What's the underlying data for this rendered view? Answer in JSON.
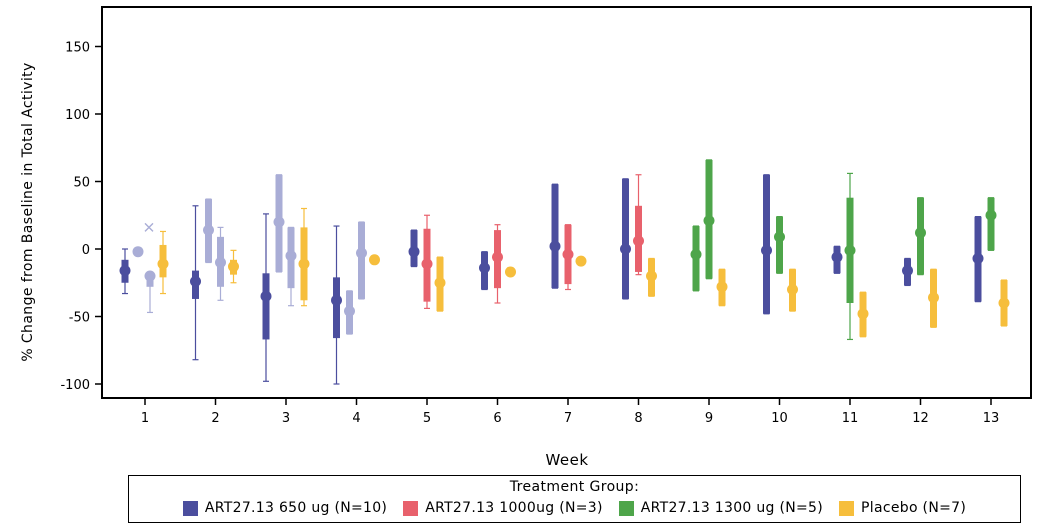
{
  "chart_data": {
    "type": "box",
    "title": "",
    "xlabel": "Week",
    "ylabel": "%  Change from Baseline in Total Activity",
    "ylim": [
      -108,
      175
    ],
    "yticks": [
      -100,
      -50,
      0,
      50,
      100,
      150
    ],
    "categories": [
      "1",
      "2",
      "3",
      "4",
      "5",
      "6",
      "7",
      "8",
      "9",
      "10",
      "11",
      "12",
      "13"
    ],
    "legend": {
      "title": "Treatment Group:",
      "position": "bottom"
    },
    "series": [
      {
        "name": "ART27.13 650 ug (N=10)",
        "color": "#4B4E9E",
        "light_color": "#A9ADD6",
        "points": [
          {
            "week": "1",
            "offset": -20,
            "mean": -16,
            "box": [
              -25,
              -8
            ],
            "whisker": [
              -33,
              0
            ]
          },
          {
            "week": "1",
            "offset": -7,
            "mean": -2,
            "shade": "light"
          },
          {
            "week": "1",
            "offset": 5,
            "mean": -20,
            "box": [
              -28,
              -18
            ],
            "whisker": [
              -47,
              -18
            ],
            "outlier": 16,
            "shade": "light"
          },
          {
            "week": "2",
            "offset": -20,
            "mean": -24,
            "box": [
              -37,
              -16
            ],
            "whisker": [
              -82,
              32
            ]
          },
          {
            "week": "2",
            "offset": -7,
            "mean": 14,
            "box": [
              -10,
              37
            ],
            "whisker": [
              -10,
              37
            ],
            "shade": "light"
          },
          {
            "week": "2",
            "offset": 5,
            "mean": -10,
            "box": [
              -28,
              9
            ],
            "whisker": [
              -38,
              16
            ],
            "shade": "light"
          },
          {
            "week": "3",
            "offset": -20,
            "mean": -35,
            "box": [
              -67,
              -18
            ],
            "whisker": [
              -98,
              26
            ]
          },
          {
            "week": "3",
            "offset": -7,
            "mean": 20,
            "box": [
              -17,
              55
            ],
            "whisker": [
              -17,
              55
            ],
            "shade": "light"
          },
          {
            "week": "3",
            "offset": 5,
            "mean": -5,
            "box": [
              -29,
              16
            ],
            "whisker": [
              -42,
              16
            ],
            "shade": "light"
          },
          {
            "week": "4",
            "offset": -20,
            "mean": -38,
            "box": [
              -66,
              -21
            ],
            "whisker": [
              -100,
              17
            ]
          },
          {
            "week": "4",
            "offset": -7,
            "mean": -46,
            "box": [
              -63,
              -31
            ],
            "whisker": [
              -63,
              -31
            ],
            "shade": "light"
          },
          {
            "week": "4",
            "offset": 5,
            "mean": -3,
            "box": [
              -37,
              20
            ],
            "whisker": [
              -37,
              20
            ],
            "shade": "light"
          },
          {
            "week": "5",
            "offset": -13,
            "mean": -2,
            "box": [
              -13,
              14
            ],
            "whisker": [
              -13,
              14
            ]
          },
          {
            "week": "6",
            "offset": -13,
            "mean": -14,
            "box": [
              -30,
              -2
            ],
            "whisker": [
              -30,
              -2
            ]
          },
          {
            "week": "7",
            "offset": -13,
            "mean": 2,
            "box": [
              -29,
              48
            ],
            "whisker": [
              -29,
              48
            ]
          },
          {
            "week": "8",
            "offset": -13,
            "mean": 0,
            "box": [
              -37,
              52
            ],
            "whisker": [
              -37,
              52
            ]
          },
          {
            "week": "10",
            "offset": -13,
            "mean": -1,
            "box": [
              -48,
              55
            ],
            "whisker": [
              -48,
              55
            ]
          },
          {
            "week": "11",
            "offset": -13,
            "mean": -6,
            "box": [
              -18,
              2
            ],
            "whisker": [
              -18,
              2
            ]
          },
          {
            "week": "12",
            "offset": -13,
            "mean": -16,
            "box": [
              -27,
              -7
            ],
            "whisker": [
              -27,
              -7
            ]
          },
          {
            "week": "13",
            "offset": -13,
            "mean": -7,
            "box": [
              -39,
              24
            ],
            "whisker": [
              -39,
              24
            ]
          }
        ]
      },
      {
        "name": "ART27.13 1000ug (N=3)",
        "color": "#E8616C",
        "points": [
          {
            "week": "5",
            "offset": 0,
            "mean": -11,
            "box": [
              -39,
              15
            ],
            "whisker": [
              -44,
              25
            ]
          },
          {
            "week": "6",
            "offset": 0,
            "mean": -6,
            "box": [
              -29,
              14
            ],
            "whisker": [
              -40,
              18
            ]
          },
          {
            "week": "7",
            "offset": 0,
            "mean": -4,
            "box": [
              -26,
              18
            ],
            "whisker": [
              -30,
              18
            ]
          },
          {
            "week": "8",
            "offset": 0,
            "mean": 6,
            "box": [
              -17,
              32
            ],
            "whisker": [
              -19,
              55
            ]
          }
        ]
      },
      {
        "name": "ART27.13 1300 ug (N=5)",
        "color": "#4EA54A",
        "points": [
          {
            "week": "9",
            "offset": -13,
            "mean": -4,
            "box": [
              -31,
              17
            ],
            "whisker": [
              -31,
              17
            ]
          },
          {
            "week": "9",
            "offset": 0,
            "mean": 21,
            "box": [
              -22,
              66
            ],
            "whisker": [
              -22,
              66
            ]
          },
          {
            "week": "10",
            "offset": 0,
            "mean": 9,
            "box": [
              -18,
              24
            ],
            "whisker": [
              -18,
              24
            ]
          },
          {
            "week": "11",
            "offset": 0,
            "mean": -1,
            "box": [
              -40,
              38
            ],
            "whisker": [
              -67,
              56
            ]
          },
          {
            "week": "12",
            "offset": 0,
            "mean": 12,
            "box": [
              -19,
              38
            ],
            "whisker": [
              -19,
              38
            ]
          },
          {
            "week": "13",
            "offset": 0,
            "mean": 25,
            "box": [
              -1,
              38
            ],
            "whisker": [
              -1,
              38
            ]
          }
        ]
      },
      {
        "name": "Placebo  (N=7)",
        "color": "#F6BE3C",
        "points": [
          {
            "week": "1",
            "offset": 18,
            "mean": -11,
            "box": [
              -21,
              3
            ],
            "whisker": [
              -33,
              13
            ]
          },
          {
            "week": "2",
            "offset": 18,
            "mean": -13,
            "box": [
              -19,
              -8
            ],
            "whisker": [
              -25,
              -1
            ]
          },
          {
            "week": "3",
            "offset": 18,
            "mean": -11,
            "box": [
              -38,
              16
            ],
            "whisker": [
              -42,
              30
            ]
          },
          {
            "week": "4",
            "offset": 18,
            "mean": -8,
            "box": [
              -10,
              -6
            ],
            "whisker": [
              -10,
              -6
            ]
          },
          {
            "week": "5",
            "offset": 13,
            "mean": -25,
            "box": [
              -46,
              -6
            ],
            "whisker": [
              -46,
              -6
            ]
          },
          {
            "week": "6",
            "offset": 13,
            "mean": -17,
            "box": [
              -20,
              -14
            ],
            "whisker": [
              -20,
              -14
            ]
          },
          {
            "week": "7",
            "offset": 13,
            "mean": -9,
            "box": [
              -11,
              -7
            ],
            "whisker": [
              -11,
              -7
            ]
          },
          {
            "week": "8",
            "offset": 13,
            "mean": -20,
            "box": [
              -35,
              -7
            ],
            "whisker": [
              -35,
              -7
            ]
          },
          {
            "week": "9",
            "offset": 13,
            "mean": -28,
            "box": [
              -42,
              -15
            ],
            "whisker": [
              -42,
              -15
            ]
          },
          {
            "week": "10",
            "offset": 13,
            "mean": -30,
            "box": [
              -46,
              -15
            ],
            "whisker": [
              -46,
              -15
            ]
          },
          {
            "week": "11",
            "offset": 13,
            "mean": -48,
            "box": [
              -65,
              -32
            ],
            "whisker": [
              -65,
              -32
            ]
          },
          {
            "week": "12",
            "offset": 13,
            "mean": -36,
            "box": [
              -58,
              -15
            ],
            "whisker": [
              -58,
              -15
            ]
          },
          {
            "week": "13",
            "offset": 13,
            "mean": -40,
            "box": [
              -57,
              -23
            ],
            "whisker": [
              -57,
              -23
            ]
          }
        ]
      }
    ]
  }
}
